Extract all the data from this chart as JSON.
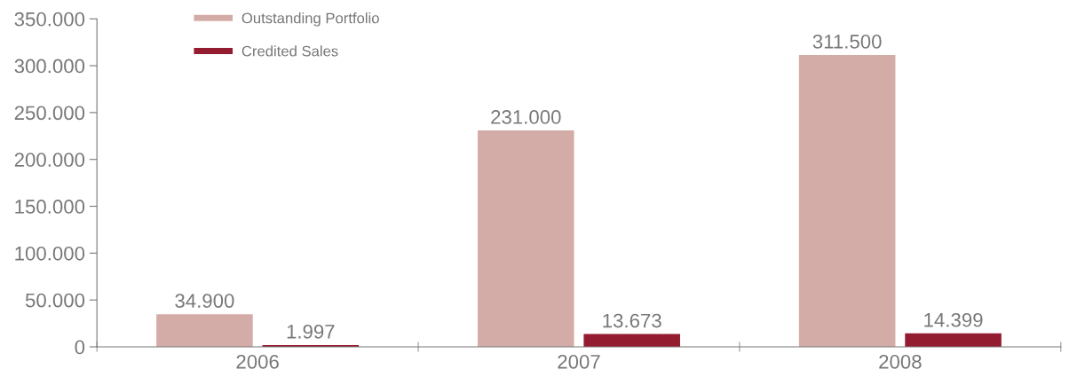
{
  "chart_data": {
    "type": "bar",
    "categories": [
      "2006",
      "2007",
      "2008"
    ],
    "series": [
      {
        "name": "Outstanding Portfolio",
        "color": "#d4aca7",
        "values": [
          34900,
          231000,
          311500
        ],
        "value_labels": [
          "34.900",
          "231.000",
          "311.500"
        ]
      },
      {
        "name": "Credited Sales",
        "color": "#941c30",
        "values": [
          1997,
          13673,
          14399
        ],
        "value_labels": [
          "1.997",
          "13.673",
          "14.399"
        ]
      }
    ],
    "ylim": [
      0,
      350000
    ],
    "yticks": [
      {
        "value": 0,
        "label": "0"
      },
      {
        "value": 50000,
        "label": "50.000"
      },
      {
        "value": 100000,
        "label": "100.000"
      },
      {
        "value": 150000,
        "label": "150.000"
      },
      {
        "value": 200000,
        "label": "200.000"
      },
      {
        "value": 250000,
        "label": "250.000"
      },
      {
        "value": 300000,
        "label": "300.000"
      },
      {
        "value": 350000,
        "label": "350.000"
      }
    ],
    "grid": false,
    "legend": "top left"
  }
}
